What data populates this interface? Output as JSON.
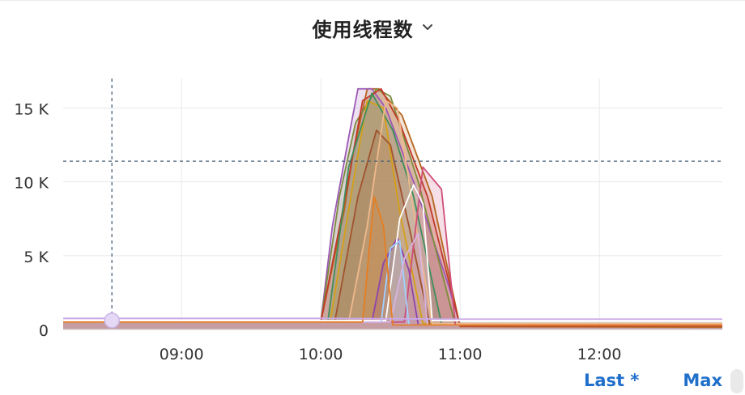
{
  "panel": {
    "title": "使用线程数"
  },
  "icons": {
    "title_menu": "chevron-down-icon"
  },
  "legend": {
    "last_label": "Last *",
    "max_label": "Max"
  },
  "chart_data": {
    "type": "area",
    "title": "使用线程数",
    "xlabel": "",
    "ylabel": "",
    "x_ticks": [
      "09:00",
      "10:00",
      "11:00",
      "12:00"
    ],
    "y_ticks": [
      "0",
      "5 K",
      "10 K",
      "15 K"
    ],
    "x_range": [
      "08:09",
      "12:53"
    ],
    "ylim": [
      0,
      17000
    ],
    "grid": true,
    "legend": "below-right",
    "crosshair": {
      "time": "08:30",
      "value": 11400
    },
    "hover_point": {
      "time": "08:30",
      "value": 500
    },
    "baseline_value": 500,
    "peak_value": 16300,
    "series": [
      {
        "color": "#b5651d",
        "x": [
          "08:09",
          "10:00",
          "10:10",
          "10:14",
          "10:20",
          "10:25",
          "10:35",
          "10:48",
          "11:00",
          "12:53"
        ],
        "values": [
          500,
          500,
          8000,
          12000,
          16300,
          16300,
          14500,
          9000,
          200,
          150
        ]
      },
      {
        "color": "#9b59b6",
        "x": [
          "08:09",
          "10:00",
          "10:05",
          "10:12",
          "10:16",
          "10:22",
          "10:28",
          "10:40",
          "10:55",
          "11:00",
          "12:53"
        ],
        "values": [
          500,
          500,
          7000,
          13000,
          16300,
          16300,
          15000,
          10000,
          3000,
          300,
          300
        ]
      },
      {
        "color": "#7c8b3c",
        "x": [
          "08:09",
          "10:00",
          "10:08",
          "10:15",
          "10:24",
          "10:30",
          "10:42",
          "10:58",
          "12:53"
        ],
        "values": [
          500,
          500,
          9000,
          14000,
          16300,
          15800,
          10000,
          300,
          300
        ]
      },
      {
        "color": "#c0392b",
        "x": [
          "08:09",
          "10:00",
          "10:10",
          "10:18",
          "10:26",
          "10:34",
          "10:46",
          "11:00",
          "12:53"
        ],
        "values": [
          500,
          500,
          8500,
          15500,
          16300,
          14000,
          9000,
          250,
          250
        ]
      },
      {
        "color": "#d4a017",
        "x": [
          "08:09",
          "10:04",
          "10:14",
          "10:20",
          "10:27",
          "10:34",
          "10:44",
          "12:53"
        ],
        "values": [
          500,
          500,
          10000,
          15500,
          15000,
          8000,
          400,
          400
        ]
      },
      {
        "color": "#3f8f5a",
        "x": [
          "08:09",
          "10:03",
          "10:12",
          "10:22",
          "10:31",
          "10:40",
          "10:52",
          "12:53"
        ],
        "values": [
          500,
          500,
          11000,
          16000,
          13500,
          9000,
          400,
          400
        ]
      },
      {
        "color": "#a0522d",
        "x": [
          "08:09",
          "10:06",
          "10:16",
          "10:24",
          "10:30",
          "10:38",
          "10:47",
          "12:53"
        ],
        "values": [
          500,
          500,
          9000,
          13500,
          12500,
          7000,
          300,
          300
        ]
      },
      {
        "color": "#f0b98c",
        "x": [
          "08:09",
          "10:12",
          "10:20",
          "10:28",
          "10:33",
          "10:40",
          "10:48",
          "12:53"
        ],
        "values": [
          500,
          500,
          7000,
          15500,
          15000,
          8000,
          400,
          400
        ]
      },
      {
        "color": "#cf4f7a",
        "x": [
          "08:09",
          "10:36",
          "10:44",
          "10:52",
          "10:58",
          "12:53"
        ],
        "values": [
          500,
          500,
          11000,
          9500,
          300,
          300
        ]
      },
      {
        "color": "#8e44ad",
        "x": [
          "08:09",
          "10:22",
          "10:27",
          "10:33",
          "10:38",
          "10:42",
          "12:53"
        ],
        "values": [
          500,
          500,
          4500,
          6200,
          4000,
          300,
          300
        ]
      },
      {
        "color": "#ffffff",
        "x": [
          "08:09",
          "10:28",
          "10:34",
          "10:40",
          "10:44",
          "10:48",
          "12:53"
        ],
        "values": [
          600,
          600,
          7500,
          9800,
          8500,
          600,
          600
        ]
      },
      {
        "color": "#9fd3ff",
        "x": [
          "08:09",
          "10:26",
          "10:30",
          "10:34",
          "10:38",
          "12:53"
        ],
        "values": [
          500,
          500,
          5500,
          6000,
          300,
          300
        ]
      },
      {
        "color": "#d8b4e2",
        "x": [
          "08:09",
          "10:30",
          "10:36",
          "10:42",
          "10:46",
          "12:53"
        ],
        "values": [
          500,
          500,
          4800,
          6500,
          300,
          300
        ]
      },
      {
        "color": "#e67e22",
        "x": [
          "08:09",
          "10:18",
          "10:23",
          "10:27",
          "10:31",
          "12:53"
        ],
        "values": [
          500,
          500,
          9000,
          7000,
          300,
          300
        ]
      },
      {
        "color": "#c9a9e6",
        "x": [
          "08:09",
          "10:00",
          "11:00",
          "12:53"
        ],
        "values": [
          750,
          750,
          700,
          700
        ]
      }
    ]
  }
}
